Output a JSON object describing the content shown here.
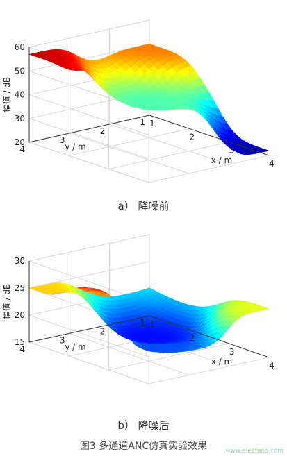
{
  "figure": {
    "title": "图3 多通道ANC仿真实验效果",
    "watermark": "www.elecfans.com"
  },
  "chart_data": [
    {
      "type": "surface",
      "caption": "a） 降噪前",
      "xlabel": "x / m",
      "ylabel": "y / m",
      "zlabel": "幅值 / dB",
      "xlim": [
        1,
        4
      ],
      "ylim": [
        1,
        4
      ],
      "zlim": [
        20,
        60
      ],
      "xticks": [
        1,
        2,
        3,
        4
      ],
      "yticks": [
        1,
        2,
        3,
        4
      ],
      "zticks": [
        20,
        30,
        40,
        50,
        60
      ],
      "colormap": "jet",
      "grid": true,
      "surface_points": [
        {
          "x": 1,
          "y": 4,
          "z": 57
        },
        {
          "x": 1,
          "y": 1,
          "z": 50
        },
        {
          "x": 4,
          "y": 4,
          "z": 56
        },
        {
          "x": 4,
          "y": 1,
          "z": 22
        },
        {
          "x": 2.5,
          "y": 2.5,
          "z": 38
        },
        {
          "x": 3,
          "y": 3.5,
          "z": 60
        }
      ]
    },
    {
      "type": "surface",
      "caption": "b） 降噪后",
      "xlabel": "x / m",
      "ylabel": "y / m",
      "zlabel": "幅值 / dB",
      "xlim": [
        1,
        4
      ],
      "ylim": [
        1,
        4
      ],
      "zlim": [
        15,
        30
      ],
      "xticks": [
        1,
        2,
        3,
        4
      ],
      "yticks": [
        1,
        2,
        3,
        4
      ],
      "zticks": [
        15,
        20,
        25,
        30
      ],
      "colormap": "jet",
      "grid": true,
      "surface_points": [
        {
          "x": 1,
          "y": 4,
          "z": 25
        },
        {
          "x": 4,
          "y": 4,
          "z": 25
        },
        {
          "x": 4,
          "y": 1,
          "z": 24
        },
        {
          "x": 2.5,
          "y": 2.5,
          "z": 17
        },
        {
          "x": 2.5,
          "y": 4,
          "z": 28
        },
        {
          "x": 3.2,
          "y": 3,
          "z": 18
        }
      ]
    }
  ]
}
